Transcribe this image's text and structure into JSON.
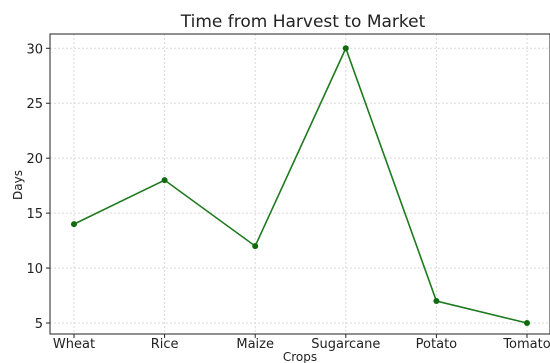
{
  "chart_data": {
    "type": "line",
    "title": "Time from Harvest to Market",
    "xlabel": "Crops",
    "ylabel": "Days",
    "categories": [
      "Wheat",
      "Rice",
      "Maize",
      "Sugarcane",
      "Potato",
      "Tomato"
    ],
    "series": [
      {
        "values": [
          14,
          18,
          12,
          30,
          7,
          5
        ]
      }
    ],
    "yticks": [
      5,
      10,
      15,
      20,
      25,
      30
    ],
    "ylim": [
      4,
      31.3
    ],
    "grid": true,
    "line_color": "#1f7a1f",
    "marker_color": "#0e6b0e",
    "grid_color": "#d9d9d9"
  }
}
